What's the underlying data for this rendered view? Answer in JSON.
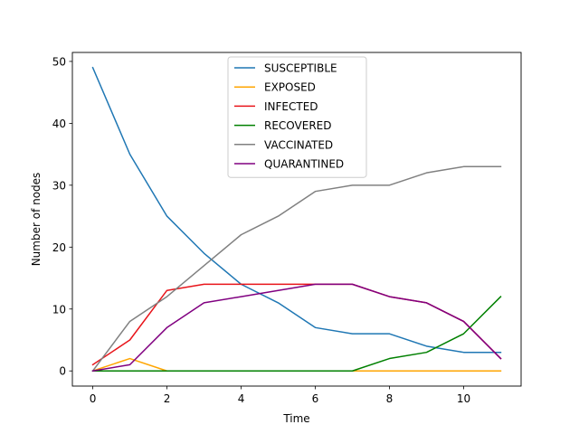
{
  "chart_data": {
    "type": "line",
    "title": "",
    "xlabel": "Time",
    "ylabel": "Number of nodes",
    "xlim": [
      -0.55,
      11.55
    ],
    "ylim": [
      -2.45,
      51.45
    ],
    "xticks": [
      0,
      2,
      4,
      6,
      8,
      10
    ],
    "yticks": [
      0,
      10,
      20,
      30,
      40,
      50
    ],
    "grid": false,
    "legend_position": "top-center",
    "x": [
      0,
      1,
      2,
      3,
      4,
      5,
      6,
      7,
      8,
      9,
      10,
      11
    ],
    "series": [
      {
        "name": "SUSCEPTIBLE",
        "color": "#1f77b4",
        "values": [
          49,
          35,
          25,
          19,
          14,
          11,
          7,
          6,
          6,
          4,
          3,
          3
        ]
      },
      {
        "name": "EXPOSED",
        "color": "#ffa500",
        "values": [
          0,
          2,
          0,
          0,
          0,
          0,
          0,
          0,
          0,
          0,
          0,
          0
        ]
      },
      {
        "name": "INFECTED",
        "color": "#e8141a",
        "values": [
          1,
          5,
          13,
          14,
          14,
          14,
          14,
          14,
          12,
          11,
          8,
          2
        ]
      },
      {
        "name": "RECOVERED",
        "color": "#008000",
        "values": [
          0,
          0,
          0,
          0,
          0,
          0,
          0,
          0,
          2,
          3,
          6,
          12
        ]
      },
      {
        "name": "VACCINATED",
        "color": "#808080",
        "values": [
          0,
          8,
          12,
          17,
          22,
          25,
          29,
          30,
          30,
          32,
          33,
          33
        ]
      },
      {
        "name": "QUARANTINED",
        "color": "#800080",
        "values": [
          0,
          1,
          7,
          11,
          12,
          13,
          14,
          14,
          12,
          11,
          8,
          2
        ]
      }
    ]
  }
}
